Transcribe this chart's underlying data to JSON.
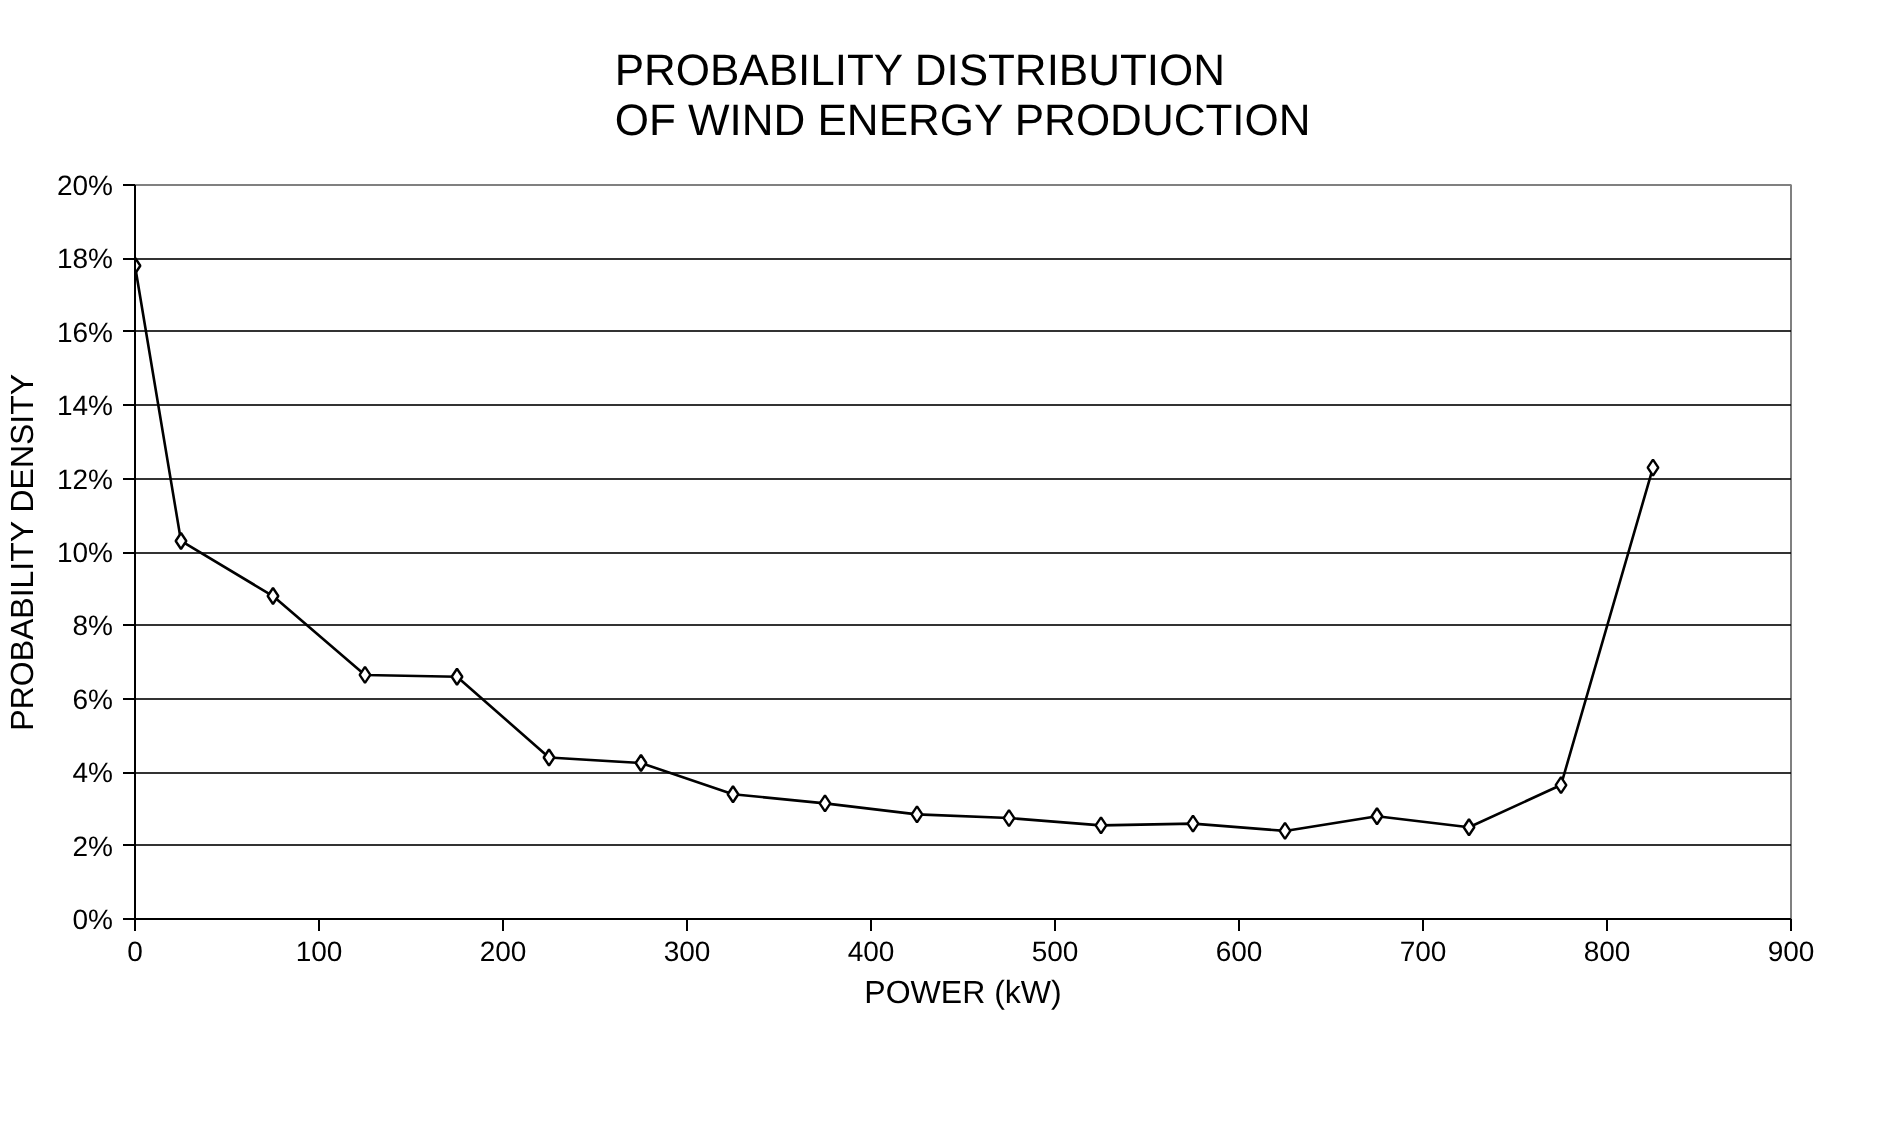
{
  "chart_data": {
    "type": "line",
    "title": "PROBABILITY DISTRIBUTION\nOF WIND ENERGY PRODUCTION",
    "xlabel": "POWER (kW)",
    "ylabel": "PROBABILITY DENSITY",
    "x": [
      0,
      25,
      75,
      125,
      175,
      225,
      275,
      325,
      375,
      425,
      475,
      525,
      575,
      625,
      675,
      725,
      775,
      825
    ],
    "series": [
      {
        "color": "#000000",
        "values": [
          17.8,
          10.3,
          8.8,
          6.65,
          6.6,
          4.4,
          4.25,
          3.4,
          3.15,
          2.85,
          2.75,
          2.55,
          2.6,
          2.4,
          2.8,
          2.5,
          3.65,
          12.3
        ]
      }
    ],
    "xlim": [
      0,
      900
    ],
    "xticks": [
      0,
      100,
      200,
      300,
      400,
      500,
      600,
      700,
      800,
      900
    ],
    "ylim": [
      0,
      20
    ],
    "yticks": [
      {
        "value": 0,
        "label": "0%"
      },
      {
        "value": 2,
        "label": "2%"
      },
      {
        "value": 4,
        "label": "4%"
      },
      {
        "value": 6,
        "label": "6%"
      },
      {
        "value": 8,
        "label": "8%"
      },
      {
        "value": 10,
        "label": "10%"
      },
      {
        "value": 12,
        "label": "12%"
      },
      {
        "value": 14,
        "label": "14%"
      },
      {
        "value": 16,
        "label": "16%"
      },
      {
        "value": 18,
        "label": "18%"
      },
      {
        "value": 20,
        "label": "20%"
      }
    ],
    "grid": "y",
    "marker": "diamond",
    "line_style": "solid"
  }
}
